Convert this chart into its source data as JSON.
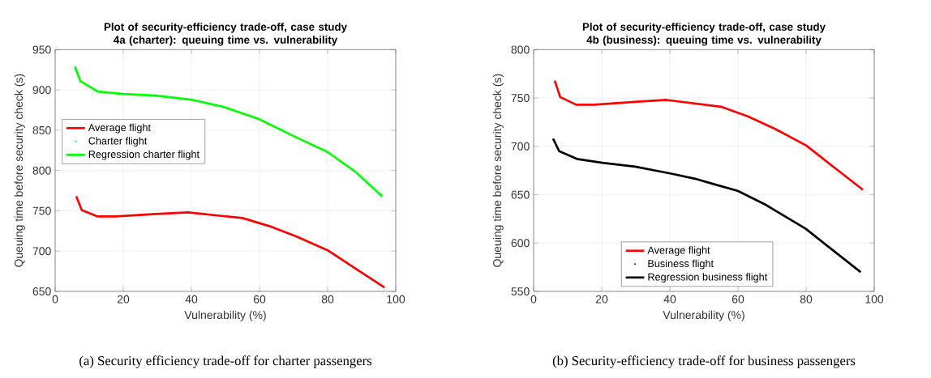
{
  "chart_data": [
    {
      "type": "line",
      "title": "Plot of security-efficiency trade-off, case study 4a (charter): queuing time vs. vulnerability",
      "xlabel": "Vulnerability (%)",
      "ylabel": "Queuing time before security check (s)",
      "xlim": [
        0,
        100
      ],
      "ylim": [
        650,
        950
      ],
      "xticks": [
        0,
        20,
        40,
        60,
        80,
        100
      ],
      "yticks": [
        650,
        700,
        750,
        800,
        850,
        900,
        950
      ],
      "grid": true,
      "legend": "left",
      "annotations": [
        "(a) Security efficiency trade-off for charter passengers"
      ],
      "series": [
        {
          "name": "Average flight",
          "color": "#ff0000",
          "x": [
            6.2,
            7.8,
            12.5,
            17.7,
            29.6,
            39,
            55,
            62.9,
            70.9,
            80,
            88.3,
            96.7
          ],
          "values": [
            768,
            751,
            743,
            743,
            746,
            748,
            741,
            731,
            718,
            701,
            678,
            655
          ]
        },
        {
          "name": "Charter flight",
          "type": "scatter",
          "color": "#00ff00"
        },
        {
          "name": "Regression charter flight",
          "color": "#00ff00",
          "x": [
            5.8,
            7.4,
            12.5,
            20,
            29.6,
            39.9,
            49.4,
            59.8,
            70.9,
            80,
            88.3,
            96
          ],
          "values": [
            929,
            911,
            898,
            895,
            893,
            888,
            879,
            864,
            841,
            823,
            798,
            768
          ]
        }
      ]
    },
    {
      "type": "line",
      "title": "Plot of security-efficiency trade-off, case study 4b (business): queuing time vs. vulnerability",
      "xlabel": "Vulnerability (%)",
      "ylabel": "Queuing time before security check (s)",
      "xlim": [
        0,
        100
      ],
      "ylim": [
        550,
        800
      ],
      "xticks": [
        0,
        20,
        40,
        60,
        80,
        100
      ],
      "yticks": [
        550,
        600,
        650,
        700,
        750,
        800
      ],
      "grid": true,
      "legend": "bottom",
      "annotations": [
        "(b) Security-efficiency trade-off for business passengers"
      ],
      "series": [
        {
          "name": "Average flight",
          "color": "#ff0000",
          "x": [
            6.2,
            7.8,
            12.5,
            17.7,
            29.6,
            39,
            55,
            62.9,
            70.9,
            80,
            88.3,
            96.7
          ],
          "values": [
            768,
            751,
            743,
            743,
            746,
            748,
            741,
            731,
            718,
            701,
            678,
            655
          ]
        },
        {
          "name": "Business flight",
          "type": "scatter",
          "color": "#000000"
        },
        {
          "name": "Regression business flight",
          "color": "#000000",
          "x": [
            5.7,
            7.5,
            12.7,
            20.2,
            29.8,
            40.1,
            48,
            52.8,
            59.9,
            67.9,
            79.8,
            87.7,
            96
          ],
          "values": [
            708,
            695,
            687,
            683,
            679,
            672,
            666,
            661,
            654,
            640,
            615,
            593,
            570
          ]
        }
      ]
    }
  ]
}
